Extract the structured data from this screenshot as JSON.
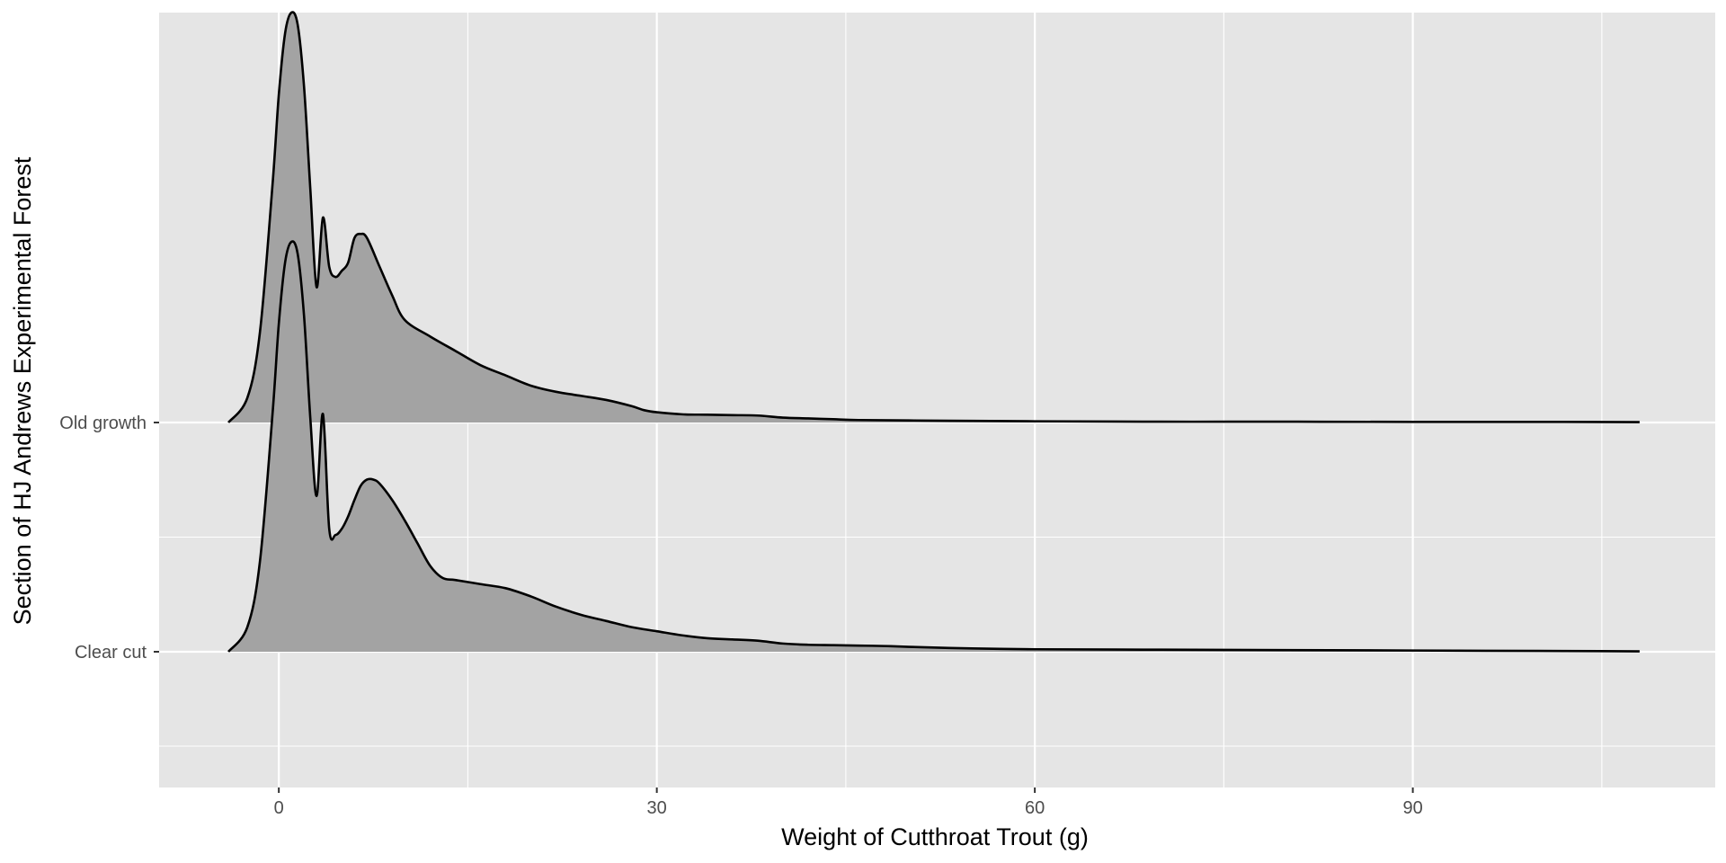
{
  "chart_data": {
    "type": "ridgeline",
    "xlabel": "Weight of Cutthroat Trout (g)",
    "ylabel": "Section of HJ Andrews Experimental Forest",
    "xlim": [
      -9.5,
      114
    ],
    "x_ticks": [
      0,
      30,
      60,
      90
    ],
    "x_tick_labels": [
      "0",
      "30",
      "60",
      "90"
    ],
    "grid": true,
    "panel_background": "#e5e5e5",
    "fill_color": "#a3a3a3",
    "line_color": "#000000",
    "grid_color": "#ffffff",
    "categories": [
      "Old growth",
      "Clear cut"
    ],
    "series": [
      {
        "category": "Old growth",
        "x": [
          -4,
          -2.5,
          -1.5,
          -0.5,
          0,
          0.5,
          1,
          1.5,
          2,
          2.5,
          3,
          3.5,
          4,
          4.5,
          5,
          5.5,
          6,
          6.5,
          7,
          8,
          9,
          10,
          12,
          14,
          16,
          18,
          20,
          22,
          24,
          26,
          28,
          29,
          30,
          32,
          34,
          36,
          38,
          40,
          42,
          44,
          46,
          50,
          55,
          60,
          70,
          80,
          90,
          100,
          108
        ],
        "y": [
          0.0,
          0.06,
          0.22,
          0.58,
          0.8,
          0.95,
          1.0,
          0.97,
          0.82,
          0.57,
          0.33,
          0.5,
          0.38,
          0.355,
          0.37,
          0.39,
          0.45,
          0.46,
          0.45,
          0.38,
          0.31,
          0.25,
          0.21,
          0.175,
          0.14,
          0.115,
          0.09,
          0.075,
          0.065,
          0.055,
          0.04,
          0.03,
          0.025,
          0.02,
          0.019,
          0.018,
          0.017,
          0.012,
          0.01,
          0.008,
          0.006,
          0.005,
          0.004,
          0.003,
          0.002,
          0.002,
          0.0015,
          0.0015,
          0.001
        ]
      },
      {
        "category": "Clear cut",
        "x": [
          -4,
          -2.5,
          -1.5,
          -0.5,
          0,
          0.5,
          1,
          1.5,
          2,
          2.5,
          3,
          3.5,
          4,
          4.5,
          5,
          5.5,
          6,
          6.5,
          7,
          7.5,
          8,
          9,
          10,
          11,
          12,
          13,
          14,
          16,
          18,
          20,
          22,
          24,
          26,
          28,
          30,
          32,
          34,
          36,
          38,
          40,
          42,
          44,
          46,
          48,
          50,
          55,
          60,
          70,
          80,
          90,
          100,
          108
        ],
        "y": [
          0.0,
          0.06,
          0.22,
          0.58,
          0.8,
          0.95,
          1.0,
          0.97,
          0.82,
          0.57,
          0.38,
          0.58,
          0.3,
          0.285,
          0.3,
          0.33,
          0.37,
          0.405,
          0.42,
          0.42,
          0.41,
          0.37,
          0.32,
          0.265,
          0.21,
          0.18,
          0.175,
          0.165,
          0.155,
          0.135,
          0.11,
          0.09,
          0.075,
          0.06,
          0.05,
          0.04,
          0.033,
          0.03,
          0.027,
          0.02,
          0.017,
          0.016,
          0.015,
          0.014,
          0.012,
          0.008,
          0.006,
          0.005,
          0.004,
          0.003,
          0.002,
          0.001
        ]
      }
    ]
  }
}
